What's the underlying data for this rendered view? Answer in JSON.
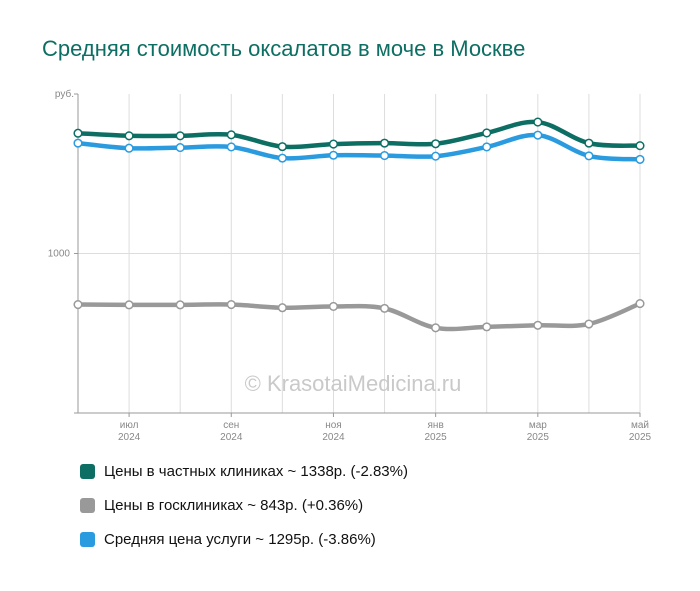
{
  "chart_data": {
    "type": "line",
    "title": "Средняя стоимость оксалатов в моче в Москве",
    "ylabel": "руб.",
    "ylim": [
      500,
      1500
    ],
    "yticks": [
      1000
    ],
    "x": [
      "2024-05",
      "2024-06",
      "2024-07",
      "2024-08",
      "2024-09",
      "2024-10",
      "2024-11",
      "2024-12",
      "2025-01",
      "2025-02",
      "2025-03",
      "2025-04",
      "2025-05"
    ],
    "xtick_labels": [
      {
        "month": "июл",
        "year": "2024"
      },
      {
        "month": "сен",
        "year": "2024"
      },
      {
        "month": "ноя",
        "year": "2024"
      },
      {
        "month": "янв",
        "year": "2025"
      },
      {
        "month": "мар",
        "year": "2025"
      },
      {
        "month": "май",
        "year": "2025"
      }
    ],
    "series": [
      {
        "name": "Цены в частных клиниках",
        "color": "#0d6e63",
        "values": [
          1377,
          1369,
          1369,
          1372,
          1335,
          1343,
          1346,
          1344,
          1378,
          1412,
          1346,
          1338,
          1338
        ]
      },
      {
        "name": "Цены в госклиниках",
        "color": "#999999",
        "values": [
          840,
          839,
          839,
          840,
          830,
          834,
          828,
          767,
          770,
          775,
          779,
          843,
          843
        ]
      },
      {
        "name": "Средняя цена услуги",
        "color": "#2b9be0",
        "values": [
          1346,
          1330,
          1332,
          1334,
          1299,
          1308,
          1307,
          1305,
          1334,
          1371,
          1306,
          1295,
          1295
        ]
      }
    ],
    "grid": true,
    "legend_position": "bottom"
  },
  "watermark": "© KrasotaiMedicina.ru",
  "legend": {
    "items": [
      {
        "text": "Цены в частных клиниках ~ 1338р. (-2.83%)",
        "color": "#0d6e63"
      },
      {
        "text": "Цены в госклиниках ~ 843р. (+0.36%)",
        "color": "#999999"
      },
      {
        "text": "Средняя цена услуги ~ 1295р. (-3.86%)",
        "color": "#2b9be0"
      }
    ]
  }
}
